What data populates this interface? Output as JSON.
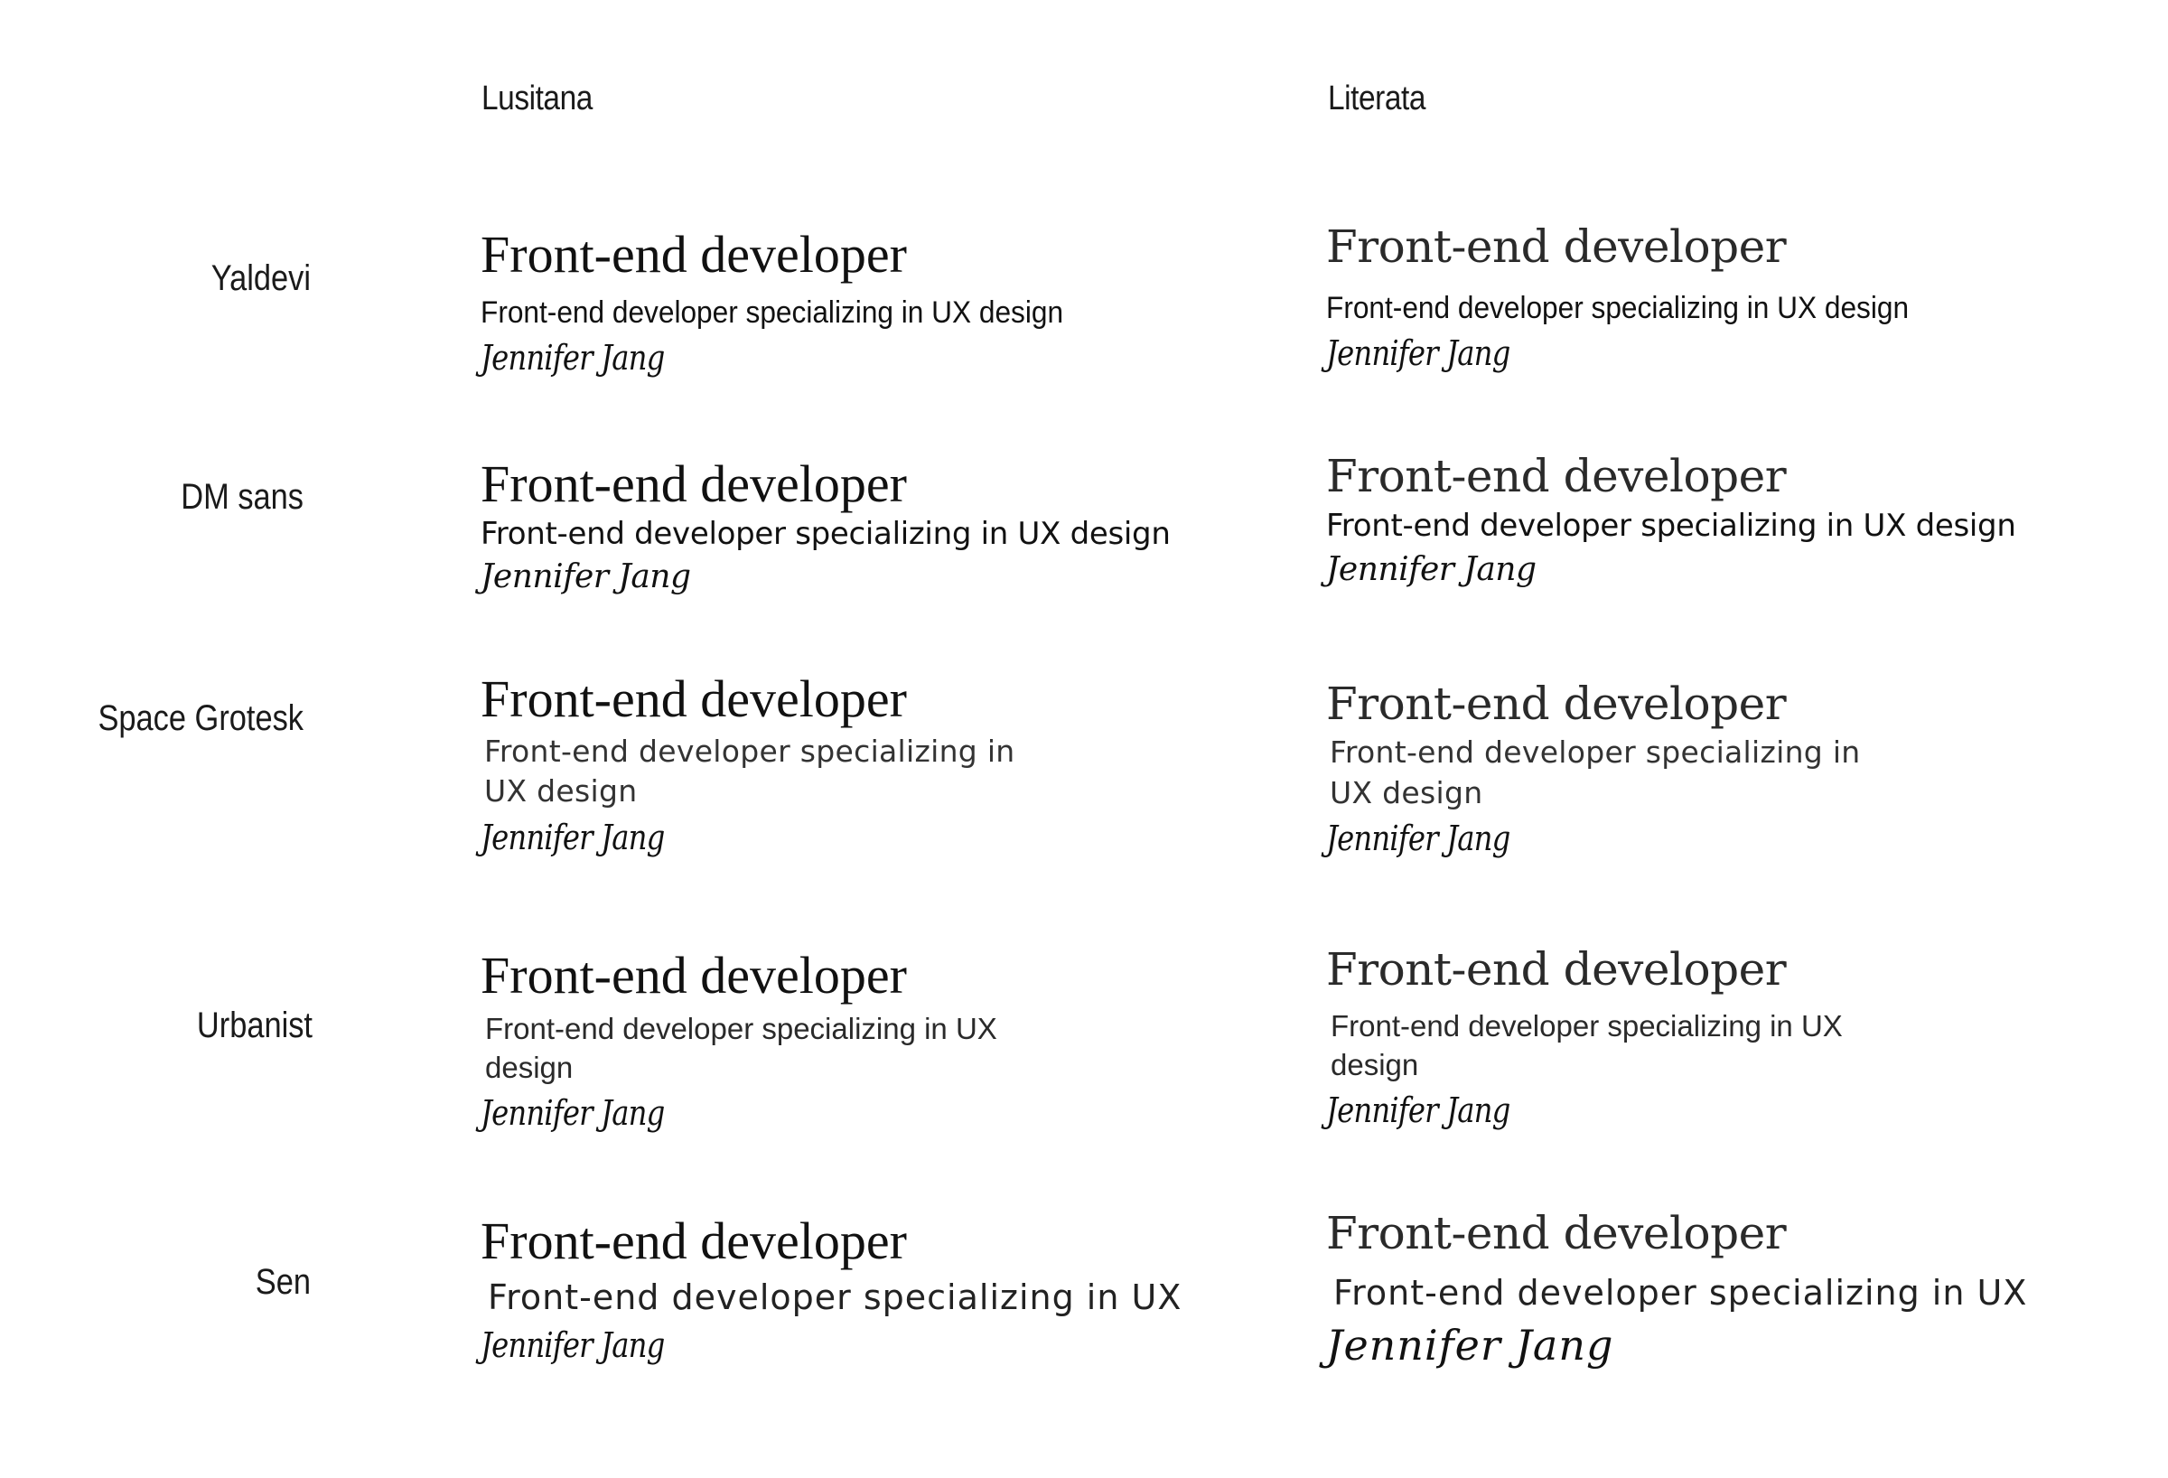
{
  "columns": {
    "lusitana": "Lusitana",
    "literata": "Literata"
  },
  "rows": [
    {
      "label": "Yaldevi",
      "title": "Front-end developer",
      "subtitle": "Front-end developer specializing in UX design",
      "signature": "Jennifer Jang"
    },
    {
      "label": "DM sans",
      "title": "Front-end developer",
      "subtitle": "Front-end developer specializing in UX design",
      "signature": "Jennifer Jang"
    },
    {
      "label": "Space Grotesk",
      "title": "Front-end developer",
      "subtitle": "Front-end developer specializing in UX design",
      "signature": "Jennifer Jang"
    },
    {
      "label": "Urbanist",
      "title": "Front-end developer",
      "subtitle": "Front-end developer specializing in UX design",
      "signature": "Jennifer Jang"
    },
    {
      "label": "Sen",
      "title": "Front-end developer",
      "subtitle": "Front-end developer specializing in UX",
      "signature": "Jennifer Jang"
    }
  ]
}
